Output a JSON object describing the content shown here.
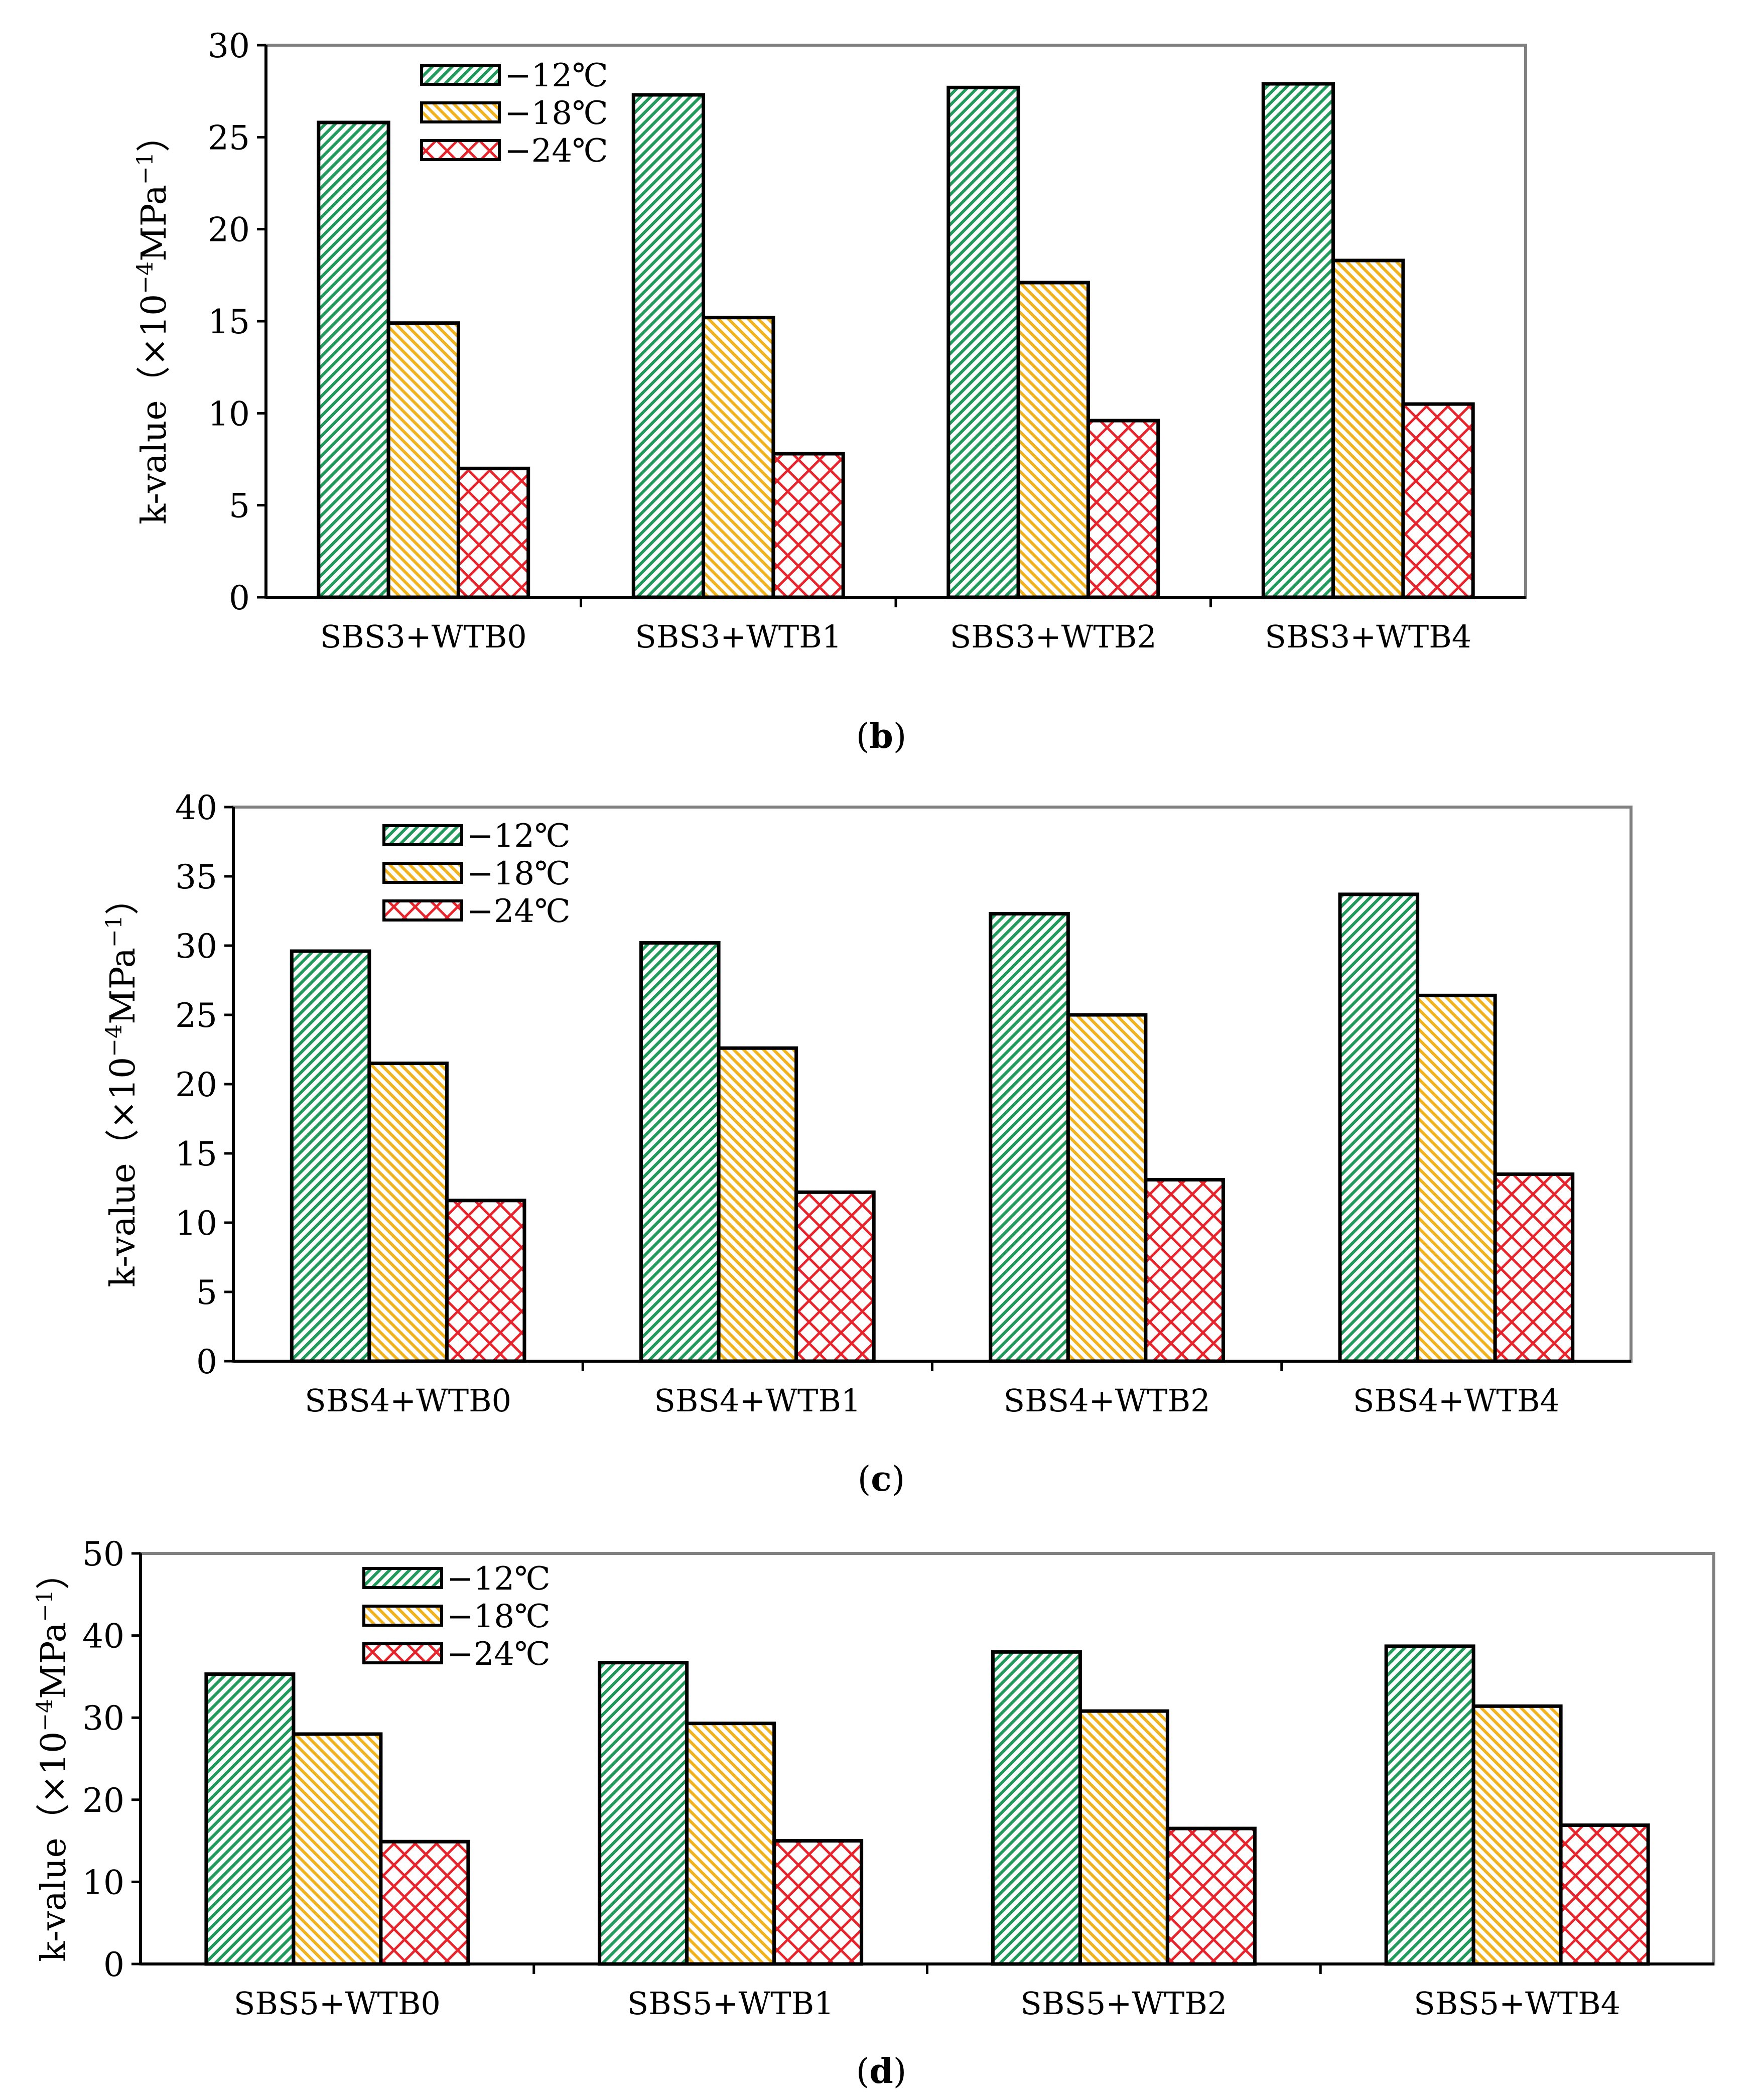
{
  "colors": {
    "green": "#1f9a5a",
    "yellow": "#f2b21c",
    "red": "#e8232b",
    "frame": "#808080",
    "bar_stroke": "#000000"
  },
  "chart_data": [
    {
      "type": "bar",
      "panel": "b",
      "caption_letter": "b",
      "categories": [
        "SBS3+WTB0",
        "SBS3+WTB1",
        "SBS3+WTB2",
        "SBS3+WTB4"
      ],
      "series": [
        {
          "name": "−12℃",
          "pattern": "diag-green",
          "values": [
            25.8,
            27.3,
            27.7,
            27.9
          ]
        },
        {
          "name": "−18℃",
          "pattern": "diag-yellow",
          "values": [
            14.9,
            15.2,
            17.1,
            18.3
          ]
        },
        {
          "name": "−24℃",
          "pattern": "cross-red",
          "values": [
            7.0,
            7.8,
            9.6,
            10.5
          ]
        }
      ],
      "ylabel_main": "k-value（×10",
      "ylabel_sup1": "−4",
      "ylabel_mid": "MPa",
      "ylabel_sup2": "−1",
      "ylabel_end": "）",
      "ylim": [
        0,
        30
      ],
      "yticks": [
        0,
        5,
        10,
        15,
        20,
        25,
        30
      ],
      "legend_position": "top-left"
    },
    {
      "type": "bar",
      "panel": "c",
      "caption_letter": "c",
      "categories": [
        "SBS4+WTB0",
        "SBS4+WTB1",
        "SBS4+WTB2",
        "SBS4+WTB4"
      ],
      "series": [
        {
          "name": "−12℃",
          "pattern": "diag-green",
          "values": [
            29.6,
            30.2,
            32.3,
            33.7
          ]
        },
        {
          "name": "−18℃",
          "pattern": "diag-yellow",
          "values": [
            21.5,
            22.6,
            25.0,
            26.4
          ]
        },
        {
          "name": "−24℃",
          "pattern": "cross-red",
          "values": [
            11.6,
            12.2,
            13.1,
            13.5
          ]
        }
      ],
      "ylabel_main": "k-value（×10",
      "ylabel_sup1": "−4",
      "ylabel_mid": "MPa",
      "ylabel_sup2": "−1",
      "ylabel_end": "）",
      "ylim": [
        0,
        40
      ],
      "yticks": [
        0,
        5,
        10,
        15,
        20,
        25,
        30,
        35,
        40
      ],
      "legend_position": "top-left"
    },
    {
      "type": "bar",
      "panel": "d",
      "caption_letter": "d",
      "categories": [
        "SBS5+WTB0",
        "SBS5+WTB1",
        "SBS5+WTB2",
        "SBS5+WTB4"
      ],
      "series": [
        {
          "name": "−12℃",
          "pattern": "diag-green",
          "values": [
            35.3,
            36.7,
            38.0,
            38.7
          ]
        },
        {
          "name": "−18℃",
          "pattern": "diag-yellow",
          "values": [
            28.0,
            29.3,
            30.8,
            31.4
          ]
        },
        {
          "name": "−24℃",
          "pattern": "cross-red",
          "values": [
            14.9,
            15.0,
            16.5,
            16.9
          ]
        }
      ],
      "ylabel_main": "k-value（×10",
      "ylabel_sup1": "−4",
      "ylabel_mid": "MPa",
      "ylabel_sup2": "−1",
      "ylabel_end": "）",
      "ylim": [
        0,
        50
      ],
      "yticks": [
        0,
        10,
        20,
        30,
        40,
        50
      ],
      "legend_position": "top-left"
    }
  ]
}
